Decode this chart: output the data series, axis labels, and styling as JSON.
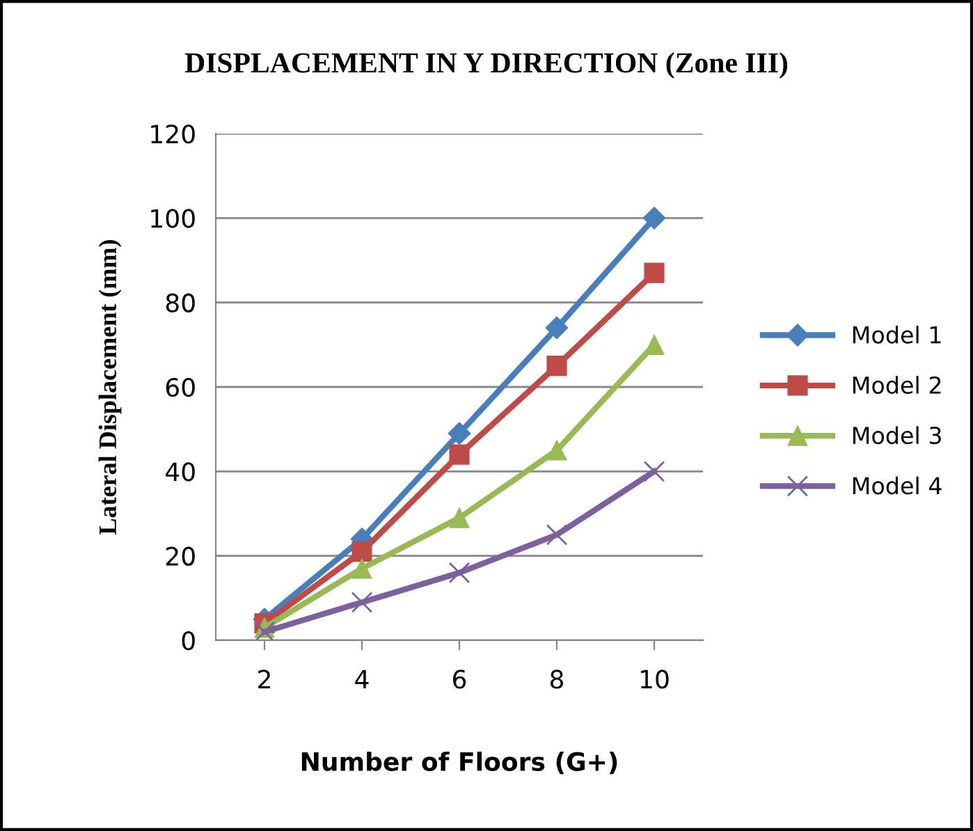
{
  "chart_data": {
    "type": "line",
    "title": "DISPLACEMENT IN Y DIRECTION (Zone III)",
    "xlabel": "Number of Floors (G+)",
    "ylabel": "Lateral Displacement (mm)",
    "categories": [
      "2",
      "4",
      "6",
      "8",
      "10"
    ],
    "series": [
      {
        "name": "Model 1",
        "color": "#4a7ebb",
        "marker": "diamond",
        "values": [
          5,
          24,
          49,
          74,
          100
        ]
      },
      {
        "name": "Model 2",
        "color": "#be4b48",
        "marker": "square",
        "values": [
          4,
          21,
          44,
          65,
          87
        ]
      },
      {
        "name": "Model 3",
        "color": "#98b954",
        "marker": "triangle",
        "values": [
          3,
          17,
          29,
          45,
          70
        ]
      },
      {
        "name": "Model 4",
        "color": "#7d60a0",
        "marker": "cross",
        "values": [
          2,
          9,
          16,
          25,
          40
        ]
      }
    ],
    "ylim": [
      0,
      120
    ],
    "yticks": [
      0,
      20,
      40,
      60,
      80,
      100,
      120
    ],
    "grid": "y",
    "legend": "right",
    "line_style": "solid"
  }
}
